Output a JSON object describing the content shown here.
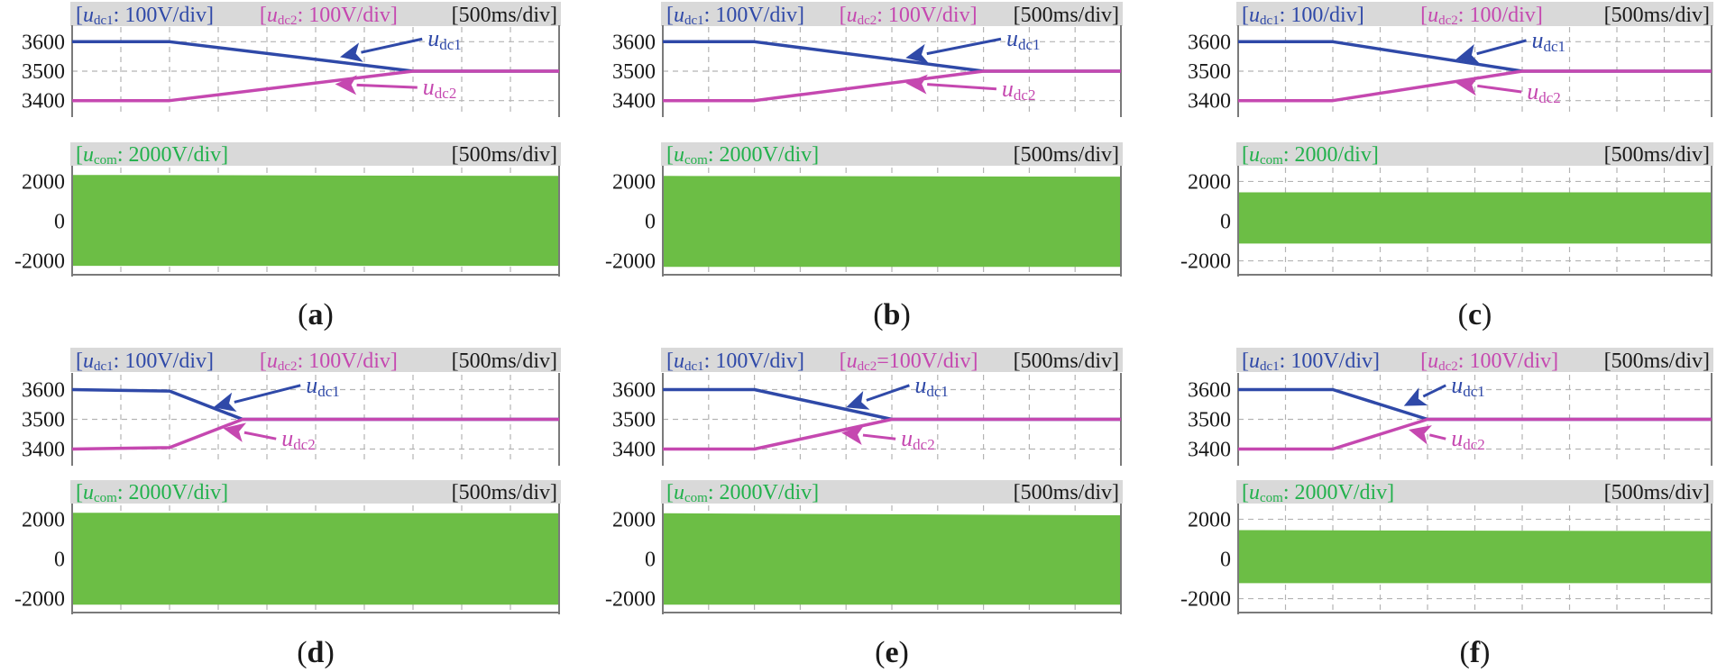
{
  "colors": {
    "ucd1": "#2f49a8",
    "ucd2": "#c548b0",
    "ucom": "#6cbe45",
    "ucom_label": "#22b14c",
    "header_bg": "#d9d9d9",
    "grid": "#b4b4b4",
    "axis": "#7a7a7a",
    "text": "#1a1a1a"
  },
  "chart_data": [
    {
      "id": "a",
      "caption": "a",
      "type": "line",
      "header_top": {
        "ucd1": {
          "sym": "u",
          "sub": "dc1",
          "text": ": 100V/div"
        },
        "ucd2": {
          "sym": "u",
          "sub": "dc2",
          "text": ": 100V/div"
        },
        "time": "[500ms/div]"
      },
      "header_bot": {
        "ucom": {
          "sym": "u",
          "sub": "com",
          "text": ": 2000V/div"
        },
        "time": "[500ms/div]"
      },
      "top_yticks": [
        "3600",
        "3500",
        "3400"
      ],
      "bot_yticks": [
        "2000",
        "0",
        "-2000"
      ],
      "ylim_top": [
        3350,
        3650
      ],
      "ylim_bot": [
        -2700,
        2700
      ],
      "x_divisions": 10,
      "series": [
        {
          "name": "ucd1",
          "x": [
            0,
            2,
            7,
            10
          ],
          "y": [
            3600,
            3600,
            3500,
            3500
          ]
        },
        {
          "name": "ucd2",
          "x": [
            0,
            2,
            7,
            10
          ],
          "y": [
            3400,
            3400,
            3500,
            3500
          ]
        }
      ],
      "ucom_band": {
        "x": [
          0,
          10
        ],
        "upper": [
          2330,
          2280
        ],
        "lower": [
          -2250,
          -2250
        ]
      },
      "annotations": [
        {
          "series": "ucd1",
          "sym": "u",
          "sub": "dc1",
          "text_x": 7.3,
          "text_y": 3585,
          "tip_x": 5.5,
          "tip_y": 3548
        },
        {
          "series": "ucd2",
          "sym": "u",
          "sub": "dc2",
          "text_x": 7.2,
          "text_y": 3420,
          "tip_x": 5.4,
          "tip_y": 3456
        }
      ]
    },
    {
      "id": "b",
      "caption": "b",
      "type": "line",
      "header_top": {
        "ucd1": {
          "sym": "u",
          "sub": "dc1",
          "text": ": 100V/div"
        },
        "ucd2": {
          "sym": "u",
          "sub": "dc2",
          "text": ": 100V/div"
        },
        "time": "[500ms/div]"
      },
      "header_bot": {
        "ucom": {
          "sym": "u",
          "sub": "com",
          "text": ": 2000V/div"
        },
        "time": "[500ms/div]"
      },
      "top_yticks": [
        "3600",
        "3500",
        "3400"
      ],
      "bot_yticks": [
        "2000",
        "0",
        "-2000"
      ],
      "ylim_top": [
        3350,
        3650
      ],
      "ylim_bot": [
        -2700,
        2700
      ],
      "x_divisions": 10,
      "series": [
        {
          "name": "ucd1",
          "x": [
            0,
            2,
            7,
            10
          ],
          "y": [
            3600,
            3600,
            3500,
            3500
          ]
        },
        {
          "name": "ucd2",
          "x": [
            0,
            2,
            7,
            10
          ],
          "y": [
            3400,
            3400,
            3500,
            3500
          ]
        }
      ],
      "ucom_band": {
        "x": [
          0,
          10
        ],
        "upper": [
          2280,
          2240
        ],
        "lower": [
          -2300,
          -2300
        ]
      },
      "annotations": [
        {
          "series": "ucd1",
          "sym": "u",
          "sub": "dc1",
          "text_x": 7.5,
          "text_y": 3585,
          "tip_x": 5.3,
          "tip_y": 3545
        },
        {
          "series": "ucd2",
          "sym": "u",
          "sub": "dc2",
          "text_x": 7.4,
          "text_y": 3415,
          "tip_x": 5.3,
          "tip_y": 3460
        }
      ]
    },
    {
      "id": "c",
      "caption": "c",
      "type": "line",
      "header_top": {
        "ucd1": {
          "sym": "u",
          "sub": "dc1",
          "text": ": 100/div"
        },
        "ucd2": {
          "sym": "u",
          "sub": "dc2",
          "text": ": 100/div"
        },
        "time": "[500ms/div]"
      },
      "header_bot": {
        "ucom": {
          "sym": "u",
          "sub": "com",
          "text": ": 2000/div"
        },
        "time": "[500ms/div]"
      },
      "top_yticks": [
        "3600",
        "3500",
        "3400"
      ],
      "bot_yticks": [
        "2000",
        "0",
        "-2000"
      ],
      "ylim_top": [
        3350,
        3650
      ],
      "ylim_bot": [
        -2700,
        2700
      ],
      "x_divisions": 10,
      "series": [
        {
          "name": "ucd1",
          "x": [
            0,
            2,
            6,
            10
          ],
          "y": [
            3600,
            3600,
            3500,
            3500
          ]
        },
        {
          "name": "ucd2",
          "x": [
            0,
            2,
            6,
            10
          ],
          "y": [
            3400,
            3400,
            3500,
            3500
          ]
        }
      ],
      "ucom_band": {
        "x": [
          0,
          10
        ],
        "upper": [
          1450,
          1450
        ],
        "lower": [
          -1130,
          -1130
        ]
      },
      "annotations": [
        {
          "series": "ucd1",
          "sym": "u",
          "sub": "dc1",
          "text_x": 6.2,
          "text_y": 3580,
          "tip_x": 4.6,
          "tip_y": 3540
        },
        {
          "series": "ucd2",
          "sym": "u",
          "sub": "dc2",
          "text_x": 6.1,
          "text_y": 3405,
          "tip_x": 4.6,
          "tip_y": 3460
        }
      ]
    },
    {
      "id": "d",
      "caption": "d",
      "type": "line",
      "header_top": {
        "ucd1": {
          "sym": "u",
          "sub": "dc1",
          "text": ": 100V/div"
        },
        "ucd2": {
          "sym": "u",
          "sub": "dc2",
          "text": ": 100V/div"
        },
        "time": "[500ms/div]"
      },
      "header_bot": {
        "ucom": {
          "sym": "u",
          "sub": "com",
          "text": ": 2000V/div"
        },
        "time": "[500ms/div]"
      },
      "top_yticks": [
        "3600",
        "3500",
        "3400"
      ],
      "bot_yticks": [
        "2000",
        "0",
        "-2000"
      ],
      "ylim_top": [
        3350,
        3650
      ],
      "ylim_bot": [
        -2700,
        2700
      ],
      "x_divisions": 10,
      "series": [
        {
          "name": "ucd1",
          "x": [
            0,
            2,
            3.5,
            10
          ],
          "y": [
            3600,
            3595,
            3500,
            3500
          ]
        },
        {
          "name": "ucd2",
          "x": [
            0,
            2,
            3.5,
            10
          ],
          "y": [
            3400,
            3405,
            3500,
            3500
          ]
        }
      ],
      "ucom_band": {
        "x": [
          0,
          10
        ],
        "upper": [
          2330,
          2300
        ],
        "lower": [
          -2300,
          -2300
        ]
      },
      "annotations": [
        {
          "series": "ucd1",
          "sym": "u",
          "sub": "dc1",
          "text_x": 4.8,
          "text_y": 3590,
          "tip_x": 2.9,
          "tip_y": 3540
        },
        {
          "series": "ucd2",
          "sym": "u",
          "sub": "dc2",
          "text_x": 4.3,
          "text_y": 3410,
          "tip_x": 3.1,
          "tip_y": 3470
        }
      ]
    },
    {
      "id": "e",
      "caption": "e",
      "type": "line",
      "header_top": {
        "ucd1": {
          "sym": "u",
          "sub": "dc1",
          "text": ": 100V/div"
        },
        "ucd2": {
          "sym": "u",
          "sub": "dc2",
          "text": "=100V/div"
        },
        "time": "[500ms/div]"
      },
      "header_bot": {
        "ucom": {
          "sym": "u",
          "sub": "com",
          "text": ": 2000V/div"
        },
        "time": "[500ms/div]"
      },
      "top_yticks": [
        "3600",
        "3500",
        "3400"
      ],
      "bot_yticks": [
        "2000",
        "0",
        "-2000"
      ],
      "ylim_top": [
        3350,
        3650
      ],
      "ylim_bot": [
        -2700,
        2700
      ],
      "x_divisions": 10,
      "series": [
        {
          "name": "ucd1",
          "x": [
            0,
            2,
            5,
            10
          ],
          "y": [
            3600,
            3600,
            3500,
            3500
          ]
        },
        {
          "name": "ucd2",
          "x": [
            0,
            2,
            5,
            10
          ],
          "y": [
            3400,
            3400,
            3500,
            3500
          ]
        }
      ],
      "ucom_band": {
        "x": [
          0,
          10
        ],
        "upper": [
          2300,
          2200
        ],
        "lower": [
          -2300,
          -2300
        ]
      },
      "annotations": [
        {
          "series": "ucd1",
          "sym": "u",
          "sub": "dc1",
          "text_x": 5.5,
          "text_y": 3590,
          "tip_x": 4.0,
          "tip_y": 3540
        },
        {
          "series": "ucd2",
          "sym": "u",
          "sub": "dc2",
          "text_x": 5.2,
          "text_y": 3410,
          "tip_x": 3.9,
          "tip_y": 3455
        }
      ]
    },
    {
      "id": "f",
      "caption": "f",
      "type": "line",
      "header_top": {
        "ucd1": {
          "sym": "u",
          "sub": "dc1",
          "text": ": 100V/div"
        },
        "ucd2": {
          "sym": "u",
          "sub": "dc2",
          "text": ": 100V/div"
        },
        "time": "[500ms/div]"
      },
      "header_bot": {
        "ucom": {
          "sym": "u",
          "sub": "com",
          "text": ": 2000V/div"
        },
        "time": "[500ms/div]"
      },
      "top_yticks": [
        "3600",
        "3500",
        "3400"
      ],
      "bot_yticks": [
        "2000",
        "0",
        "-2000"
      ],
      "ylim_top": [
        3350,
        3650
      ],
      "ylim_bot": [
        -2700,
        2700
      ],
      "x_divisions": 10,
      "series": [
        {
          "name": "ucd1",
          "x": [
            0,
            2,
            4,
            10
          ],
          "y": [
            3600,
            3600,
            3500,
            3500
          ]
        },
        {
          "name": "ucd2",
          "x": [
            0,
            2,
            4,
            10
          ],
          "y": [
            3400,
            3400,
            3500,
            3500
          ]
        }
      ],
      "ucom_band": {
        "x": [
          0,
          10
        ],
        "upper": [
          1450,
          1400
        ],
        "lower": [
          -1220,
          -1220
        ]
      },
      "annotations": [
        {
          "series": "ucd1",
          "sym": "u",
          "sub": "dc1",
          "text_x": 4.5,
          "text_y": 3590,
          "tip_x": 3.5,
          "tip_y": 3545
        },
        {
          "series": "ucd2",
          "sym": "u",
          "sub": "dc2",
          "text_x": 4.5,
          "text_y": 3410,
          "tip_x": 3.6,
          "tip_y": 3465
        }
      ]
    }
  ]
}
